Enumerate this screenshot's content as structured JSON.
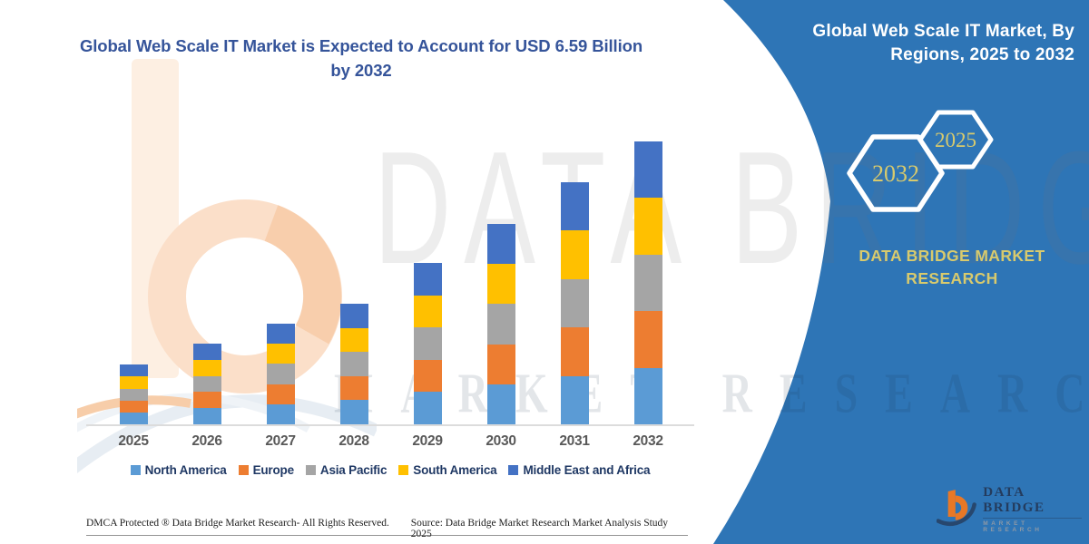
{
  "left": {
    "title": "Global Web Scale IT Market is Expected to Account for USD 6.59 Billion by 2032",
    "footer_left": "DMCA Protected ® Data Bridge Market Research-  All Rights Reserved.",
    "footer_right": "Source: Data Bridge Market Research  Market Analysis Study 2025"
  },
  "right_panel": {
    "title": "Global Web Scale IT Market, By Regions, 2025 to 2032",
    "hexagons": [
      {
        "label": "2032"
      },
      {
        "label": "2025"
      }
    ],
    "brand_text": "DATA BRIDGE MARKET RESEARCH",
    "logo": {
      "name": "DATA BRIDGE",
      "subtitle": "MARKET RESEARCH"
    },
    "colors": {
      "background": "#2E75B6",
      "accent_yellow": "#D8CA6D",
      "hex_stroke": "#FFFFFF"
    }
  },
  "watermarks": {
    "big": "DATA BRIDGE",
    "row": "MARKET RESEARCH"
  },
  "chart_data": {
    "type": "bar",
    "stacked": true,
    "unit": "USD Billion",
    "title": "Global Web Scale IT Market, By Regions, 2025 to 2032",
    "xlabel": "",
    "ylabel": "",
    "categories": [
      "2025",
      "2026",
      "2027",
      "2028",
      "2029",
      "2030",
      "2031",
      "2032"
    ],
    "series": [
      {
        "name": "North America",
        "color": "#5B9BD5",
        "values": [
          0.278,
          0.376,
          0.47,
          0.562,
          0.752,
          0.934,
          1.128,
          1.318
        ]
      },
      {
        "name": "Europe",
        "color": "#ED7D31",
        "values": [
          0.278,
          0.376,
          0.47,
          0.562,
          0.752,
          0.934,
          1.128,
          1.318
        ]
      },
      {
        "name": "Asia Pacific",
        "color": "#A5A5A5",
        "values": [
          0.278,
          0.376,
          0.47,
          0.562,
          0.752,
          0.934,
          1.128,
          1.318
        ]
      },
      {
        "name": "South America",
        "color": "#FFC000",
        "values": [
          0.278,
          0.376,
          0.47,
          0.562,
          0.752,
          0.934,
          1.128,
          1.318
        ]
      },
      {
        "name": "Middle East and Africa",
        "color": "#4472C4",
        "values": [
          0.278,
          0.376,
          0.47,
          0.562,
          0.752,
          0.934,
          1.128,
          1.318
        ]
      }
    ],
    "totals": [
      1.39,
      1.88,
      2.35,
      2.81,
      3.76,
      4.67,
      5.64,
      6.59
    ],
    "ylim": [
      0,
      7
    ],
    "grid": false,
    "axis_labels_shown": false,
    "legend_position": "bottom"
  }
}
